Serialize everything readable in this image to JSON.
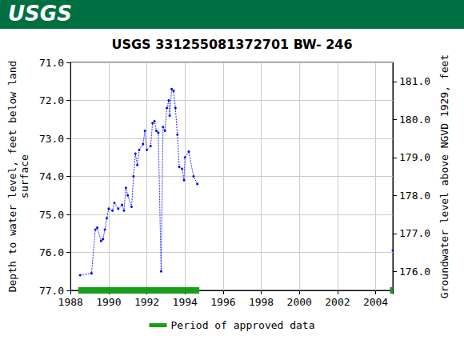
{
  "chart_data": {
    "type": "line",
    "title": "USGS 331255081372701 BW- 246",
    "banner": {
      "text": "USGS",
      "color": "#006f41"
    },
    "ylabel": "Depth to water level, feet below land\nsurface",
    "y2label": "Groundwater level above NGVD 1929, feet",
    "x": [
      1988.5,
      1989.1,
      1989.3,
      1989.4,
      1989.6,
      1989.7,
      1989.8,
      1989.9,
      1990.0,
      1990.2,
      1990.3,
      1990.5,
      1990.7,
      1990.8,
      1990.9,
      1991.0,
      1991.2,
      1991.3,
      1991.4,
      1991.5,
      1991.6,
      1991.8,
      1991.9,
      1992.0,
      1992.2,
      1992.3,
      1992.4,
      1992.5,
      1992.6,
      1992.75,
      1992.85,
      1992.95,
      1993.05,
      1993.15,
      1993.2,
      1993.3,
      1993.4,
      1993.5,
      1993.6,
      1993.7,
      1993.85,
      1993.95,
      1994.0,
      1994.2,
      1994.45,
      1994.65,
      1999.0,
      2004.9
    ],
    "series": [
      {
        "color": "#0000ff",
        "marker": "circle",
        "line_style": "dotted",
        "values": [
          76.6,
          76.55,
          75.4,
          75.35,
          75.7,
          75.65,
          75.4,
          75.1,
          74.85,
          74.9,
          74.7,
          74.85,
          74.75,
          74.9,
          74.3,
          74.5,
          74.8,
          74.0,
          73.4,
          73.7,
          73.3,
          73.15,
          72.8,
          73.3,
          73.2,
          72.6,
          72.55,
          72.8,
          72.85,
          76.5,
          72.7,
          72.8,
          72.2,
          72.0,
          72.4,
          71.7,
          71.75,
          72.2,
          72.9,
          73.75,
          73.8,
          74.1,
          73.5,
          73.35,
          74.0,
          74.2,
          null,
          75.95
        ]
      }
    ],
    "approved": {
      "name": "Period of approved data",
      "color": "#1a9e1a",
      "periods": [
        [
          1988.4,
          1994.75
        ],
        [
          2004.75,
          2004.9
        ]
      ]
    },
    "xlim": [
      1988,
      2004.9
    ],
    "xticks": [
      1988,
      1990,
      1992,
      1994,
      1996,
      1998,
      2000,
      2002,
      2004
    ],
    "ylim": [
      71,
      77
    ],
    "yticks": [
      {
        "value": 71,
        "label": "71.0"
      },
      {
        "value": 72,
        "label": "72.0"
      },
      {
        "value": 73,
        "label": "73.0"
      },
      {
        "value": 74,
        "label": "74.0"
      },
      {
        "value": 75,
        "label": "75.0"
      },
      {
        "value": 76,
        "label": "76.0"
      },
      {
        "value": 77,
        "label": "77.0"
      }
    ],
    "y2lim": [
      175.5,
      181.5
    ],
    "y2ticks": [
      {
        "value": 176,
        "label": "176.0"
      },
      {
        "value": 177,
        "label": "177.0"
      },
      {
        "value": 178,
        "label": "178.0"
      },
      {
        "value": 179,
        "label": "179.0"
      },
      {
        "value": 180,
        "label": "180.0"
      },
      {
        "value": 181,
        "label": "181.0"
      }
    ],
    "grid": true,
    "legend": "bottom"
  }
}
